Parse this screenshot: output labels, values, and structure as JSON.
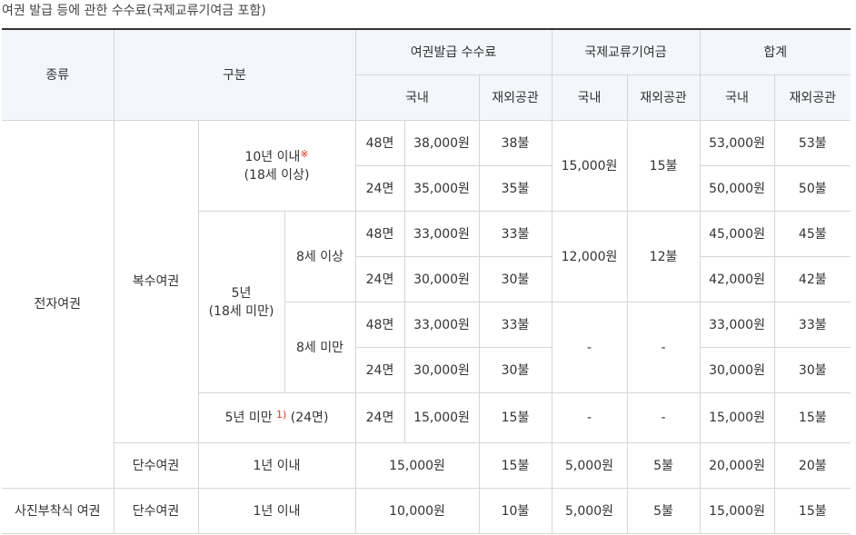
{
  "caption": "여권 발급 등에 관한 수수료(국제교류기여금 포함)",
  "header": {
    "type": "종류",
    "division": "구분",
    "issue_fee": "여권발급 수수료",
    "contribution": "국제교류기여금",
    "total": "합계",
    "domestic": "국내",
    "abroad": "재외공관"
  },
  "electronic": {
    "type_label": "전자여권",
    "multiple_label": "복수여권",
    "ten_years": "10년 이내",
    "ten_years_mark": "※",
    "ten_years_age": "(18세 이상)",
    "five_years": "5년",
    "five_years_age": "(18세 미만)",
    "age_8_over": "8세 이상",
    "age_8_under": "8세 미만",
    "under_five_years": "5년 미만",
    "under_five_mark": "1)",
    "under_five_pages": "(24면)",
    "single_label": "단수여권",
    "one_year": "1년 이내",
    "rows": {
      "r10_48": {
        "pages": "48면",
        "domestic": "38,000원",
        "abroad": "38불",
        "total_domestic": "53,000원",
        "total_abroad": "53불"
      },
      "r10_24": {
        "pages": "24면",
        "domestic": "35,000원",
        "abroad": "35불",
        "total_domestic": "50,000원",
        "total_abroad": "50불"
      },
      "r5o_48": {
        "pages": "48면",
        "domestic": "33,000원",
        "abroad": "33불",
        "total_domestic": "45,000원",
        "total_abroad": "45불"
      },
      "r5o_24": {
        "pages": "24면",
        "domestic": "30,000원",
        "abroad": "30불",
        "total_domestic": "42,000원",
        "total_abroad": "42불"
      },
      "r5u_48": {
        "pages": "48면",
        "domestic": "33,000원",
        "abroad": "33불",
        "total_domestic": "33,000원",
        "total_abroad": "33불"
      },
      "r5u_24": {
        "pages": "24면",
        "domestic": "30,000원",
        "abroad": "30불",
        "total_domestic": "30,000원",
        "total_abroad": "30불"
      },
      "r_lt5": {
        "pages": "24면",
        "domestic": "15,000원",
        "abroad": "15불",
        "contrib_domestic": "-",
        "contrib_abroad": "-",
        "total_domestic": "15,000원",
        "total_abroad": "15불"
      },
      "single": {
        "fee": "15,000원",
        "abroad": "15불",
        "contrib_domestic": "5,000원",
        "contrib_abroad": "5불",
        "total_domestic": "20,000원",
        "total_abroad": "20불"
      }
    },
    "contrib_10": {
      "domestic": "15,000원",
      "abroad": "15불"
    },
    "contrib_5o": {
      "domestic": "12,000원",
      "abroad": "12불"
    },
    "contrib_5u": {
      "domestic": "-",
      "abroad": "-"
    }
  },
  "photo": {
    "type_label": "사진부착식 여권",
    "single_label": "단수여권",
    "one_year": "1년 이내",
    "fee": "10,000원",
    "abroad": "10불",
    "contrib_domestic": "5,000원",
    "contrib_abroad": "5불",
    "total_domestic": "15,000원",
    "total_abroad": "15불"
  }
}
